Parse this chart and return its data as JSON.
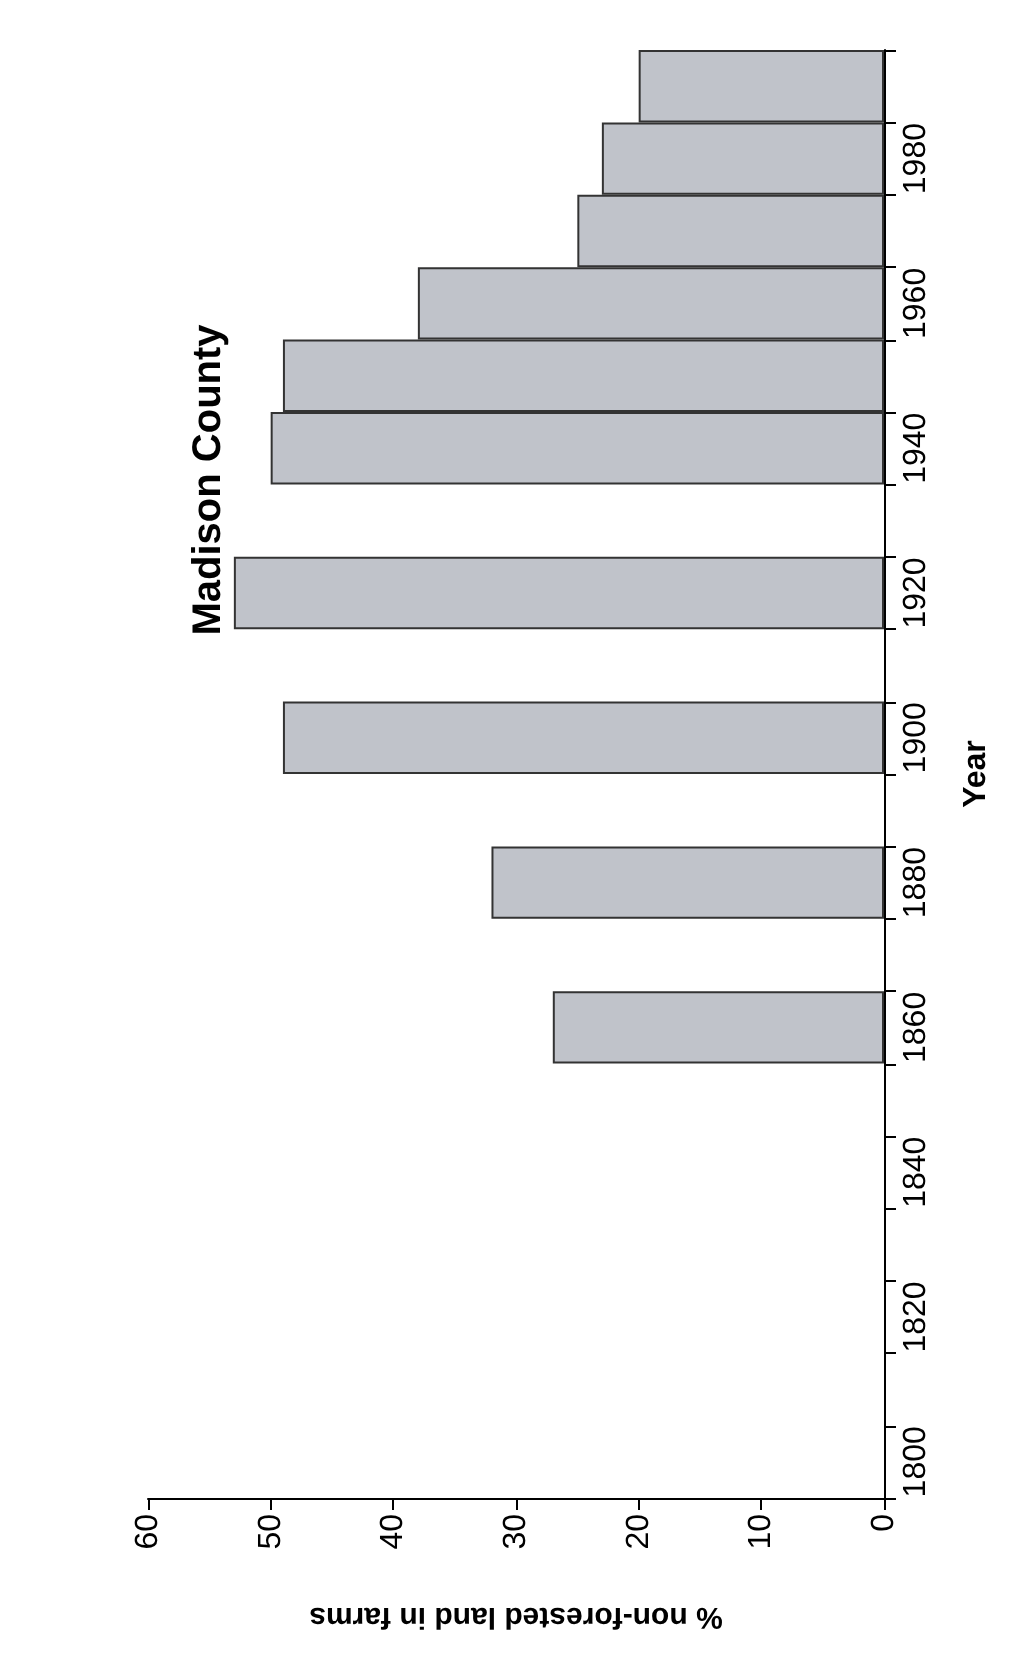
{
  "chart_data": {
    "type": "bar",
    "orientation": "horizontal",
    "title": "Madison County",
    "xlabel": "% non-forested land in farms",
    "ylabel": "Year",
    "categories": [
      null,
      "1980",
      null,
      "1960",
      null,
      "1940",
      null,
      "1920",
      null,
      "1900",
      null,
      "1880",
      null,
      "1860",
      null,
      "1840",
      null,
      "1820",
      null,
      "1800"
    ],
    "values": [
      20,
      23,
      25,
      38,
      49,
      50,
      null,
      53,
      null,
      49,
      null,
      32,
      null,
      27,
      null,
      null,
      null,
      null,
      null,
      null
    ],
    "color": "#c0c3ca",
    "xlim": [
      60,
      0
    ],
    "xticks": [
      60,
      50,
      40,
      30,
      20,
      10,
      0
    ],
    "grid": false
  }
}
